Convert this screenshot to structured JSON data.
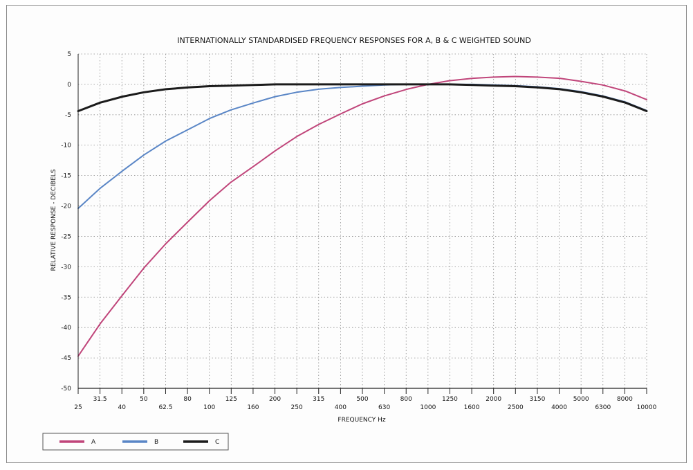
{
  "chart_data": {
    "type": "line",
    "title": "INTERNATIONALLY STANDARDISED FREQUENCY RESPONSES  FOR  A, B & C WEIGHTED SOUND",
    "xlabel": "FREQUENCY Hz",
    "ylabel": "RELATIVE RESPONSE - DECIBELS",
    "x_scale": "log",
    "x_categories": [
      "25",
      "31.5",
      "40",
      "50",
      "62.5",
      "80",
      "100",
      "125",
      "160",
      "200",
      "250",
      "315",
      "400",
      "500",
      "630",
      "800",
      "1000",
      "1250",
      "1600",
      "2000",
      "2500",
      "3150",
      "4000",
      "5000",
      "6300",
      "8000",
      "10000"
    ],
    "x": [
      25,
      31.5,
      40,
      50,
      63,
      80,
      100,
      125,
      160,
      200,
      250,
      315,
      400,
      500,
      630,
      800,
      1000,
      1250,
      1600,
      2000,
      2500,
      3150,
      4000,
      5000,
      6300,
      8000,
      10000
    ],
    "y_ticks": [
      "5",
      "0",
      "-5",
      "-10",
      "-15",
      "-20",
      "-25",
      "-30",
      "-35",
      "-40",
      "-45",
      "-50"
    ],
    "ylim": [
      -50,
      5
    ],
    "grid": true,
    "legend_position": "bottom-left",
    "series": [
      {
        "name": "A",
        "color": "#c0457a",
        "values": [
          -44.7,
          -39.4,
          -34.6,
          -30.2,
          -26.2,
          -22.5,
          -19.1,
          -16.1,
          -13.4,
          -10.9,
          -8.6,
          -6.6,
          -4.8,
          -3.2,
          -1.9,
          -0.8,
          0.0,
          0.6,
          1.0,
          1.2,
          1.3,
          1.2,
          1.0,
          0.5,
          -0.1,
          -1.1,
          -2.5
        ]
      },
      {
        "name": "B",
        "color": "#5a86c6",
        "values": [
          -20.4,
          -17.1,
          -14.2,
          -11.6,
          -9.3,
          -7.4,
          -5.6,
          -4.2,
          -3.0,
          -2.0,
          -1.3,
          -0.8,
          -0.5,
          -0.3,
          -0.1,
          0.0,
          0.0,
          0.0,
          0.0,
          -0.1,
          -0.2,
          -0.4,
          -0.7,
          -1.2,
          -1.9,
          -2.9,
          -4.3
        ]
      },
      {
        "name": "C",
        "color": "#1b1b1b",
        "values": [
          -4.4,
          -3.0,
          -2.0,
          -1.3,
          -0.8,
          -0.5,
          -0.3,
          -0.2,
          -0.1,
          0.0,
          0.0,
          0.0,
          0.0,
          0.0,
          0.0,
          0.0,
          0.0,
          0.0,
          -0.1,
          -0.2,
          -0.3,
          -0.5,
          -0.8,
          -1.3,
          -2.0,
          -3.0,
          -4.4
        ]
      }
    ]
  }
}
